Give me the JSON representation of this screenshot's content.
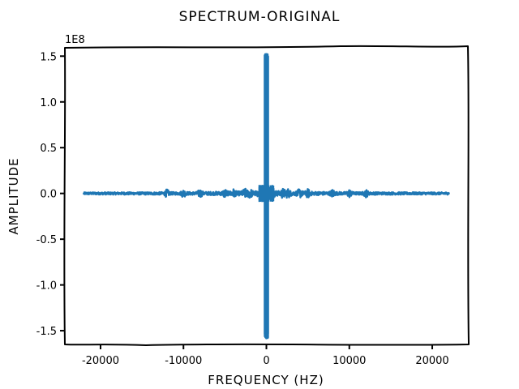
{
  "chart_data": {
    "type": "line",
    "title": "Spectrum-Original",
    "xlabel": "Frequency (Hz)",
    "ylabel": "Amplitude",
    "y_offset_label": "1e8",
    "xlim": [
      -24300,
      24300
    ],
    "ylim": [
      -1.65,
      1.6
    ],
    "x_ticks": [
      -20000,
      -10000,
      0,
      10000,
      20000
    ],
    "x_tick_labels": [
      "-20000",
      "-10000",
      "0",
      "10000",
      "20000"
    ],
    "y_ticks": [
      -1.5,
      -1.0,
      -0.5,
      0.0,
      0.5,
      1.0,
      1.5
    ],
    "y_tick_labels": [
      "-1.5",
      "-1.0",
      "-0.5",
      "0.0",
      "0.5",
      "1.0",
      "1.5"
    ],
    "grid": false,
    "legend": "none",
    "series": [
      {
        "color": "#1f77b4",
        "x_range": [
          -22050,
          22050
        ],
        "peak_x": 0,
        "peak_y_max": 1.52,
        "peak_y_min": -1.58
      }
    ]
  }
}
